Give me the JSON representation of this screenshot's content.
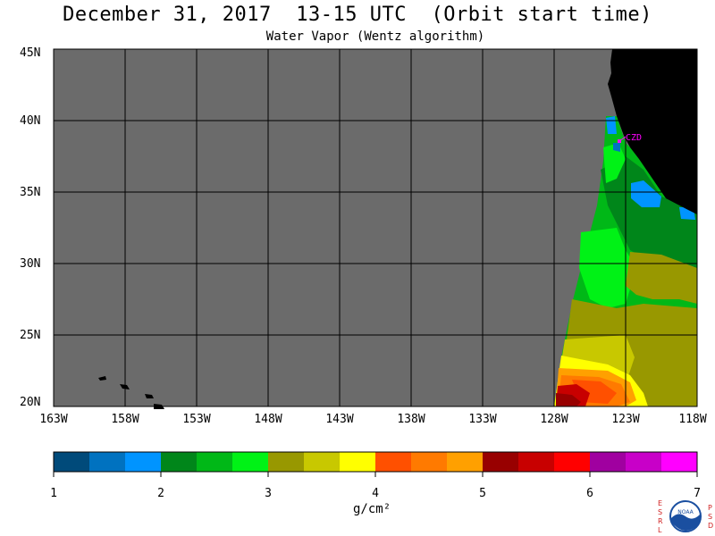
{
  "title": "December 31, 2017  13-15 UTC  (Orbit start time)",
  "subtitle": "Water Vapor (Wentz algorithm)",
  "lat_labels": [
    "45N",
    "40N",
    "35N",
    "30N",
    "25N",
    "20N"
  ],
  "lon_labels": [
    "163W",
    "158W",
    "153W",
    "148W",
    "143W",
    "138W",
    "133W",
    "128W",
    "123W",
    "118W"
  ],
  "marker_label": "CZD",
  "colorbar": {
    "tick_labels": [
      "1",
      "2",
      "3",
      "4",
      "5",
      "6",
      "7"
    ],
    "unit": "g/cm²",
    "colors": [
      "#004a7a",
      "#0072c0",
      "#0094ff",
      "#00861a",
      "#00b817",
      "#00f216",
      "#989800",
      "#c8c800",
      "#ffff00",
      "#ff5000",
      "#ff7a00",
      "#ffa000",
      "#980000",
      "#c80000",
      "#ff0000",
      "#a000a0",
      "#c800c8",
      "#ff00ff"
    ]
  },
  "land_color": "#000000",
  "nodata_color": "#6b6b6b",
  "logo_letters": {
    "left": [
      "E",
      "S",
      "R",
      "L"
    ],
    "right": [
      "P",
      "S",
      "D"
    ],
    "center": "NOAA"
  }
}
